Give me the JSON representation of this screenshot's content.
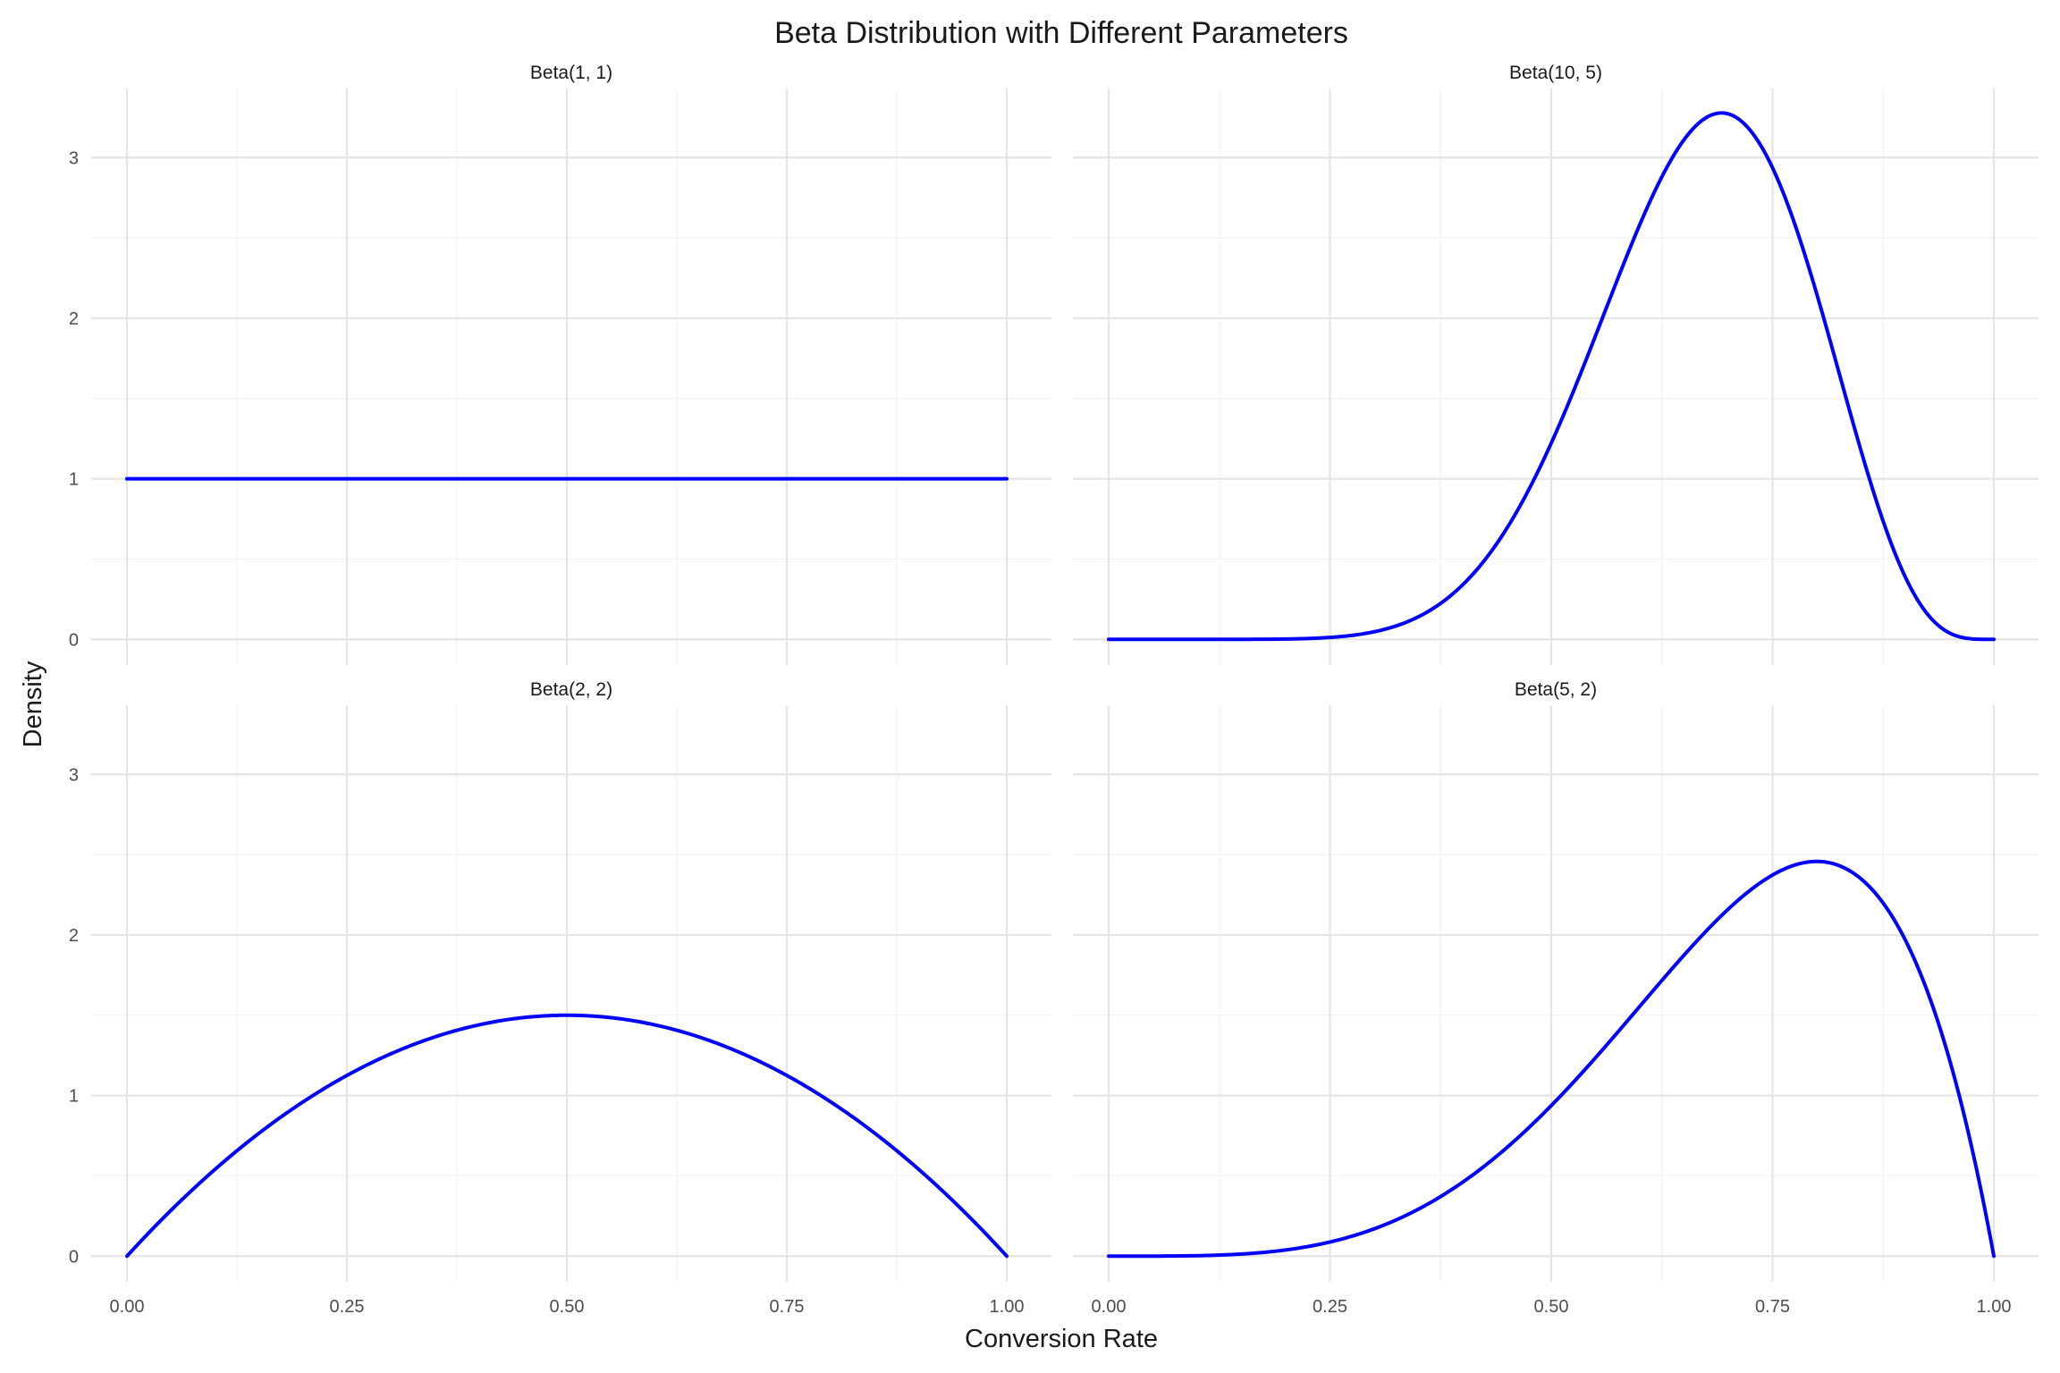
{
  "chart_data": {
    "type": "line",
    "title": "Beta Distribution with Different Parameters",
    "xlabel": "Conversion Rate",
    "ylabel": "Density",
    "xlim": [
      0,
      1
    ],
    "ylim": [
      -0.16,
      3.43
    ],
    "x_ticks": [
      "0.00",
      "0.25",
      "0.50",
      "0.75",
      "1.00"
    ],
    "y_ticks": [
      "0",
      "1",
      "2",
      "3"
    ],
    "grid": true,
    "line_color": "#0000ff",
    "facets": [
      {
        "label": "Beta(1, 1)",
        "alpha": 1,
        "beta": 1
      },
      {
        "label": "Beta(10, 5)",
        "alpha": 10,
        "beta": 5
      },
      {
        "label": "Beta(2, 2)",
        "alpha": 2,
        "beta": 2
      },
      {
        "label": "Beta(5, 2)",
        "alpha": 5,
        "beta": 2
      }
    ],
    "series": [
      {
        "facet": "Beta(1, 1)",
        "x": [
          0,
          0.05,
          0.1,
          0.15,
          0.2,
          0.25,
          0.3,
          0.35,
          0.4,
          0.45,
          0.5,
          0.55,
          0.6,
          0.65,
          0.7,
          0.75,
          0.8,
          0.85,
          0.9,
          0.95,
          1
        ],
        "values": [
          1,
          1,
          1,
          1,
          1,
          1,
          1,
          1,
          1,
          1,
          1,
          1,
          1,
          1,
          1,
          1,
          1,
          1,
          1,
          1,
          1
        ]
      },
      {
        "facet": "Beta(10, 5)",
        "x": [
          0,
          0.05,
          0.1,
          0.15,
          0.2,
          0.25,
          0.3,
          0.35,
          0.4,
          0.45,
          0.5,
          0.55,
          0.6,
          0.65,
          0.7,
          0.75,
          0.8,
          0.85,
          0.9,
          0.95,
          1
        ],
        "values": [
          0,
          0,
          0,
          0,
          0.001,
          0.007,
          0.034,
          0.117,
          0.317,
          0.705,
          1.309,
          2.06,
          2.789,
          3.234,
          3.273,
          2.817,
          1.98,
          1.04,
          0.349,
          0.048,
          0
        ]
      },
      {
        "facet": "Beta(2, 2)",
        "x": [
          0,
          0.05,
          0.1,
          0.15,
          0.2,
          0.25,
          0.3,
          0.35,
          0.4,
          0.45,
          0.5,
          0.55,
          0.6,
          0.65,
          0.7,
          0.75,
          0.8,
          0.85,
          0.9,
          0.95,
          1
        ],
        "values": [
          0,
          0.285,
          0.54,
          0.765,
          0.96,
          1.125,
          1.26,
          1.365,
          1.44,
          1.485,
          1.5,
          1.485,
          1.44,
          1.365,
          1.26,
          1.125,
          0.96,
          0.765,
          0.54,
          0.285,
          0
        ]
      },
      {
        "facet": "Beta(5, 2)",
        "x": [
          0,
          0.05,
          0.1,
          0.15,
          0.2,
          0.25,
          0.3,
          0.35,
          0.4,
          0.45,
          0.5,
          0.55,
          0.6,
          0.65,
          0.7,
          0.75,
          0.8,
          0.85,
          0.9,
          0.95,
          1
        ],
        "values": [
          0,
          0,
          0.003,
          0.015,
          0.038,
          0.088,
          0.17,
          0.292,
          0.461,
          0.677,
          0.938,
          1.235,
          1.555,
          1.875,
          2.161,
          2.373,
          2.458,
          2.35,
          1.968,
          1.219,
          0
        ]
      }
    ]
  }
}
